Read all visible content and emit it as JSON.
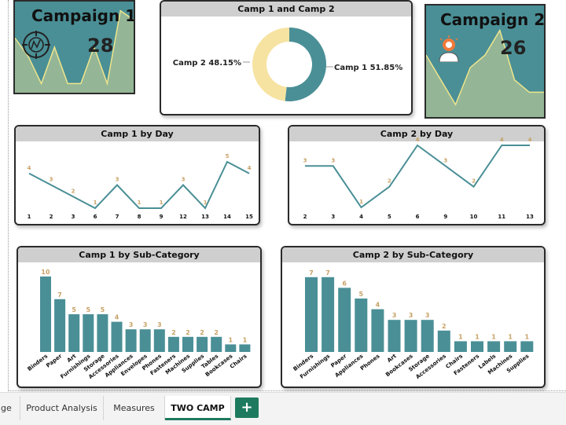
{
  "kpi1": {
    "title": "Campaign 1",
    "value": "28",
    "icon": "target-icon"
  },
  "kpi2": {
    "title": "Campaign 2",
    "value": "26",
    "icon": "lightbulb-person-icon"
  },
  "donut": {
    "title": "Camp 1 and Camp 2",
    "camp1_label": "Camp 1 51.85%",
    "camp2_label": "Camp 2 48.15%"
  },
  "tabs": [
    {
      "label": "ge",
      "active": false
    },
    {
      "label": "Product Analysis",
      "active": false
    },
    {
      "label": "Measures",
      "active": false
    },
    {
      "label": "TWO CAMP",
      "active": true
    }
  ],
  "add_tab_label": "+",
  "colors": {
    "teal": "#4a8f96",
    "label": "#c8a165",
    "donut_camp2": "#f6e3a1",
    "kpi_fill": "#94b696",
    "kpi_bg": "#4a8f96",
    "kpi_line": "#efe58c",
    "tab_accent": "#1e7a5e"
  },
  "chart_data": [
    {
      "id": "camp1_day",
      "type": "line",
      "title": "Camp 1 by Day",
      "categories": [
        "1",
        "2",
        "3",
        "6",
        "7",
        "8",
        "9",
        "12",
        "13",
        "14",
        "15"
      ],
      "values": [
        4,
        3,
        2,
        1,
        3,
        1,
        1,
        3,
        1,
        5,
        4
      ]
    },
    {
      "id": "camp2_day",
      "type": "line",
      "title": "Camp 2 by Day",
      "categories": [
        "2",
        "3",
        "4",
        "5",
        "6",
        "9",
        "10",
        "11",
        "13"
      ],
      "values": [
        3,
        3,
        1,
        2,
        4,
        3,
        2,
        4,
        4
      ]
    },
    {
      "id": "camp1_sub",
      "type": "bar",
      "title": "Camp 1 by Sub-Category",
      "categories": [
        "Binders",
        "Paper",
        "Art",
        "Furnishings",
        "Storage",
        "Accessories",
        "Appliances",
        "Envelopes",
        "Phones",
        "Fasteners",
        "Machines",
        "Supplies",
        "Tables",
        "Bookcases",
        "Chairs"
      ],
      "values": [
        10,
        7,
        5,
        5,
        5,
        4,
        3,
        3,
        3,
        2,
        2,
        2,
        2,
        1,
        1
      ]
    },
    {
      "id": "camp2_sub",
      "type": "bar",
      "title": "Camp 2 by Sub-Category",
      "categories": [
        "Binders",
        "Furnishings",
        "Paper",
        "Appliances",
        "Phones",
        "Art",
        "Bookcases",
        "Storage",
        "Accessories",
        "Chairs",
        "Fasteners",
        "Labels",
        "Machines",
        "Supplies"
      ],
      "values": [
        7,
        7,
        6,
        5,
        4,
        3,
        3,
        3,
        2,
        1,
        1,
        1,
        1,
        1
      ]
    },
    {
      "id": "camp_share",
      "type": "pie",
      "title": "Camp 1 and Camp 2",
      "categories": [
        "Camp 1",
        "Camp 2"
      ],
      "values": [
        51.85,
        48.15
      ]
    },
    {
      "id": "kpi1_spark",
      "type": "area",
      "values": [
        6,
        4,
        1,
        5,
        1,
        1,
        5,
        1,
        9,
        8
      ]
    },
    {
      "id": "kpi2_spark",
      "type": "area",
      "values": [
        5,
        3,
        1,
        4,
        5,
        7,
        3,
        2,
        2
      ]
    }
  ]
}
